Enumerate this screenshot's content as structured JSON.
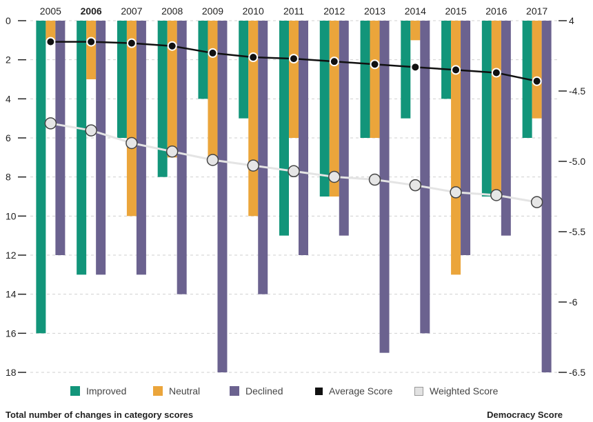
{
  "chart_data": {
    "type": "bar",
    "categories": [
      "2005",
      "2006",
      "2007",
      "2008",
      "2009",
      "2010",
      "2011",
      "2012",
      "2013",
      "2014",
      "2015",
      "2016",
      "2017"
    ],
    "series": [
      {
        "name": "Improved",
        "color": "#12957a",
        "values": [
          16,
          13,
          6,
          8,
          4,
          5,
          11,
          9,
          6,
          5,
          4,
          9,
          6
        ]
      },
      {
        "name": "Neutral",
        "color": "#eba53b",
        "values": [
          1,
          3,
          10,
          7,
          7,
          10,
          6,
          9,
          6,
          1,
          13,
          9,
          5
        ]
      },
      {
        "name": "Declined",
        "color": "#6b628f",
        "values": [
          12,
          13,
          13,
          14,
          18,
          14,
          12,
          11,
          17,
          16,
          12,
          11,
          18
        ]
      }
    ],
    "lines": [
      {
        "name": "Average Score",
        "color": "#111111",
        "values": [
          4.15,
          4.15,
          4.16,
          4.18,
          4.23,
          4.26,
          4.27,
          4.29,
          4.31,
          4.33,
          4.35,
          4.37,
          4.43
        ]
      },
      {
        "name": "Weighted Score",
        "color": "#e2e2e2",
        "values": [
          4.73,
          4.78,
          4.87,
          4.93,
          4.99,
          5.03,
          5.07,
          5.11,
          5.13,
          5.17,
          5.22,
          5.24,
          5.29
        ]
      }
    ],
    "left_axis": {
      "ticks": [
        "0",
        "2",
        "4",
        "6",
        "8",
        "10",
        "12",
        "14",
        "16",
        "18"
      ],
      "range": [
        0,
        18
      ],
      "direction": "down"
    },
    "right_axis": {
      "ticks": [
        "4",
        "-4.5",
        "-5.0",
        "-5.5",
        "-6",
        "-6.5"
      ],
      "range": [
        4,
        6.5
      ],
      "direction": "down"
    },
    "xlabel": "Total number of changes in category scores",
    "ylabel_right": "Democracy Score",
    "legend": [
      "Improved",
      "Neutral",
      "Declined",
      "Average Score",
      "Weighted Score"
    ],
    "legend_position": "bottom",
    "grid": "dashed horizontal"
  }
}
